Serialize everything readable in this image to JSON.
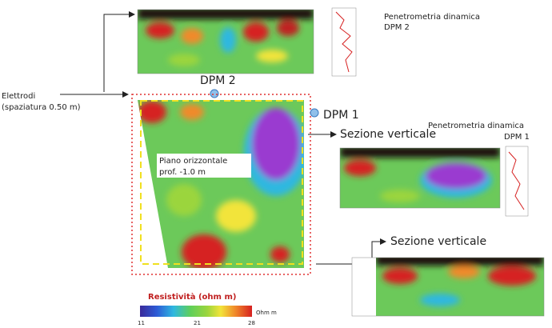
{
  "annotations": {
    "dpm2_penetrometer": [
      "Penetrometria dinamica",
      "DPM 2"
    ],
    "dpm2_marker": "DPM 2",
    "electrodes": [
      "Elettrodi",
      "(spaziatura 0.50 m)"
    ],
    "dpm1_marker": "DPM 1",
    "vertical_section_1": "Sezione verticale",
    "dpm1_penetrometer": [
      "Penetrometria dinamica",
      "DPM 1"
    ],
    "horizontal_plane": [
      "Piano orizzontale",
      "prof. -1.0 m"
    ],
    "vertical_section_2": "Sezione verticale"
  },
  "colorbar": {
    "title": "Resistività (ohm m)",
    "ticks": [
      "11",
      "21",
      "28"
    ],
    "unit": "Ohm m"
  }
}
